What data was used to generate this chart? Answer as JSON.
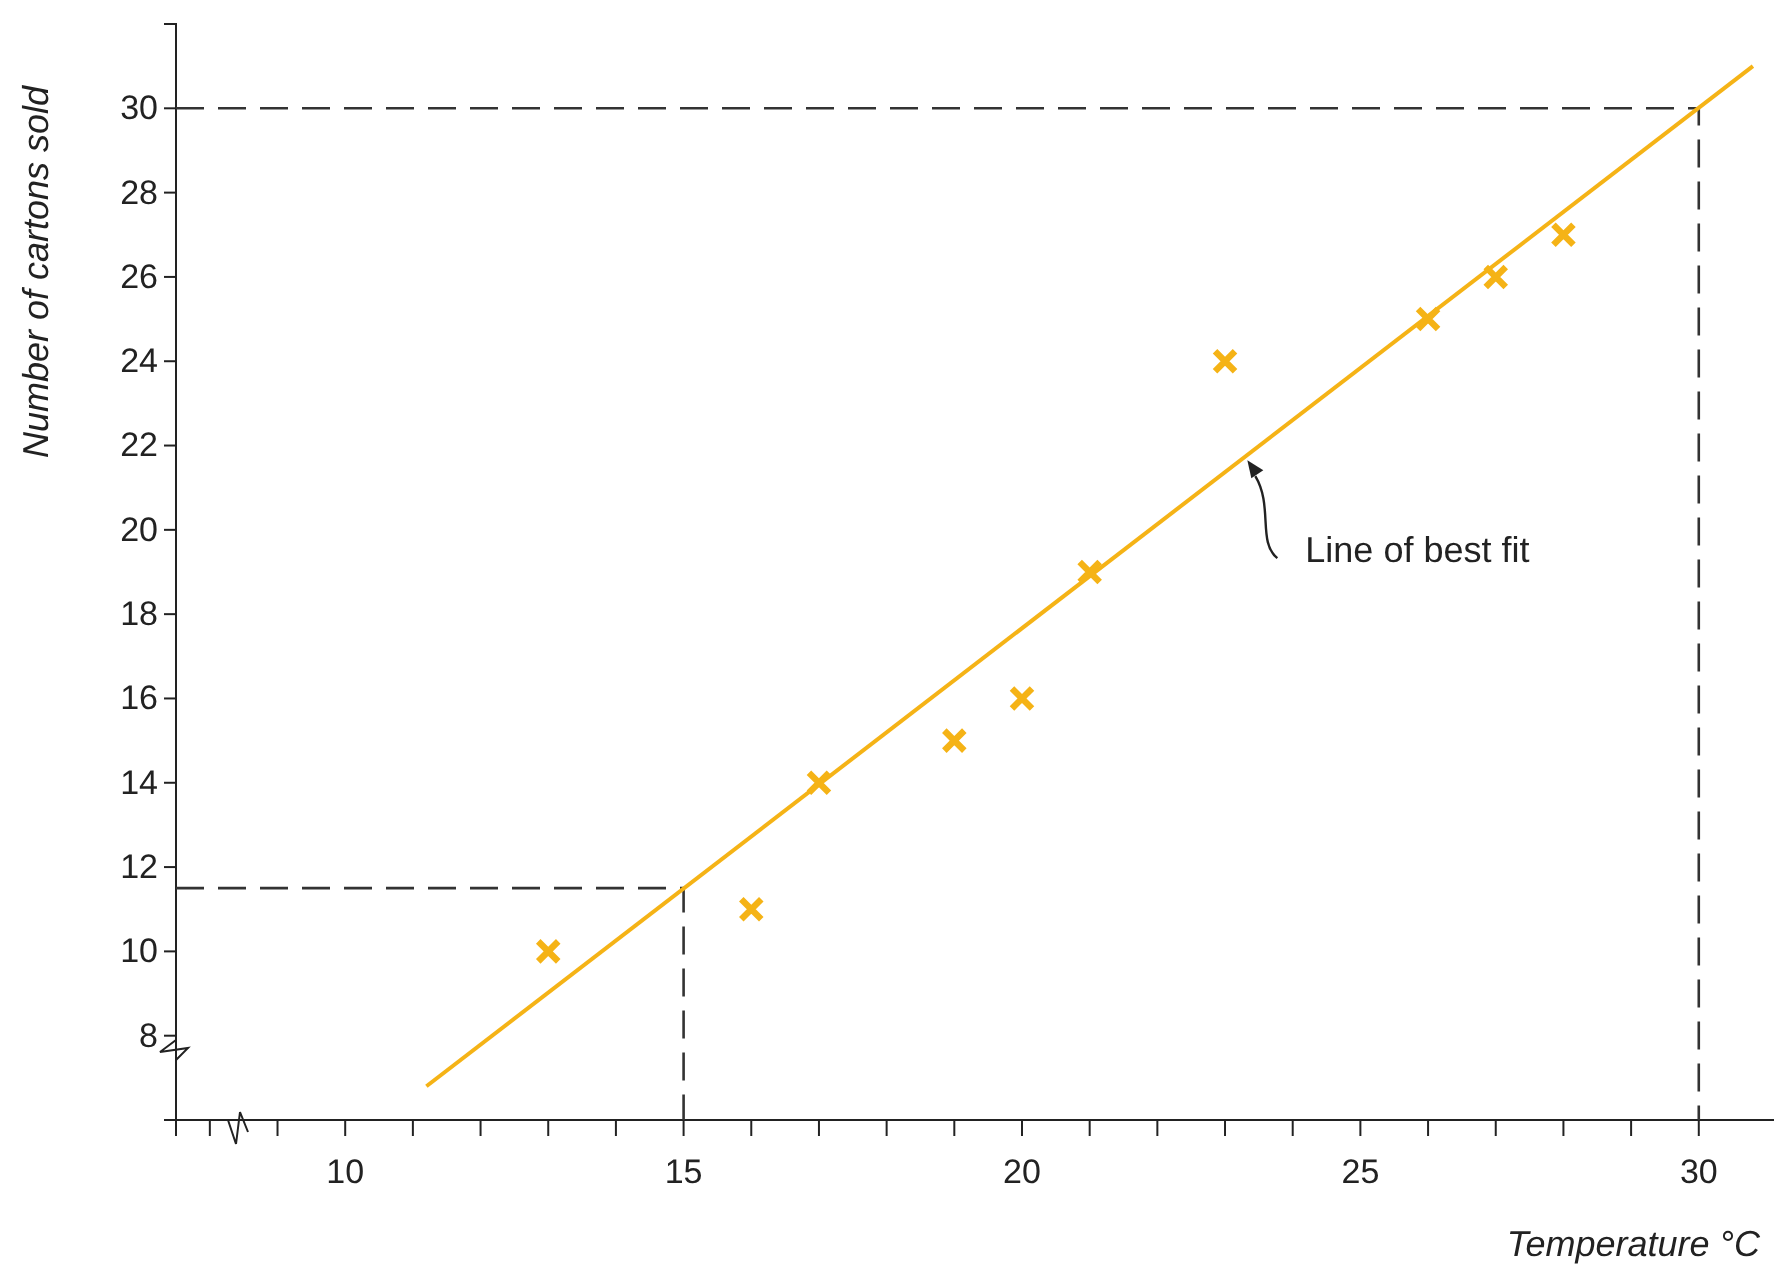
{
  "chart_data": {
    "type": "scatter",
    "xlabel": "Temperature °C",
    "ylabel": "Number of cartons sold",
    "xlim": [
      7.5,
      31.2
    ],
    "ylim": [
      6,
      32
    ],
    "xticks": [
      {
        "value": 8,
        "label": null
      },
      {
        "value": 9,
        "label": null
      },
      10,
      {
        "value": 11,
        "label": null
      },
      {
        "value": 12,
        "label": null
      },
      {
        "value": 13,
        "label": null
      },
      {
        "value": 14,
        "label": null
      },
      15,
      {
        "value": 16,
        "label": null
      },
      {
        "value": 17,
        "label": null
      },
      {
        "value": 18,
        "label": null
      },
      {
        "value": 19,
        "label": null
      },
      20,
      {
        "value": 21,
        "label": null
      },
      {
        "value": 22,
        "label": null
      },
      {
        "value": 23,
        "label": null
      },
      {
        "value": 24,
        "label": null
      },
      25,
      {
        "value": 26,
        "label": null
      },
      {
        "value": 27,
        "label": null
      },
      {
        "value": 28,
        "label": null
      },
      {
        "value": 29,
        "label": null
      },
      30
    ],
    "yticks": [
      8,
      10,
      12,
      14,
      16,
      18,
      20,
      22,
      24,
      26,
      28,
      30
    ],
    "series": [
      {
        "type": "line",
        "color": "#333333",
        "line_style": "dashed",
        "x": [
          7.5,
          15,
          15
        ],
        "values": [
          11.5,
          11.5,
          6
        ]
      },
      {
        "type": "line",
        "color": "#333333",
        "line_style": "dashed",
        "x": [
          7.5,
          30,
          30
        ],
        "values": [
          30,
          30,
          6
        ]
      },
      {
        "type": "line",
        "color": "#f5b316",
        "line_style": "solid",
        "x": [
          11.2,
          30.8
        ],
        "values": [
          6.8,
          31.0
        ]
      },
      {
        "color": "#f5b316",
        "marker": "cross",
        "x": [
          13,
          16,
          17,
          19,
          20,
          21,
          23,
          26,
          27,
          28
        ],
        "values": [
          10,
          11,
          14,
          15,
          16,
          19,
          24,
          25,
          26,
          27
        ]
      }
    ],
    "annotations": [
      {
        "text": "Line of best fit",
        "x": 23.3,
        "y": 21.7
      }
    ]
  }
}
